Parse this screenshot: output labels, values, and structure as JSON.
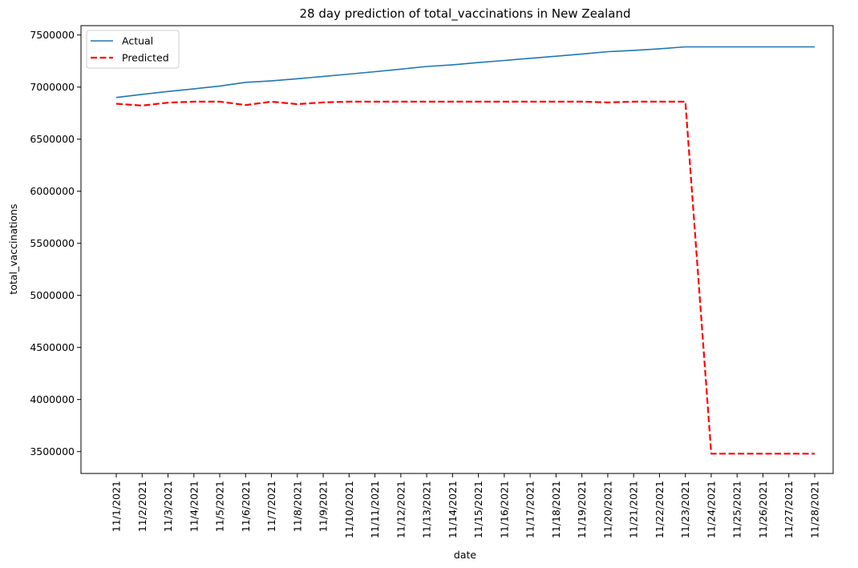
{
  "chart_data": {
    "type": "line",
    "title": "28 day prediction of total_vaccinations in New Zealand",
    "xlabel": "date",
    "ylabel": "total_vaccinations",
    "categories": [
      "11/1/2021",
      "11/2/2021",
      "11/3/2021",
      "11/4/2021",
      "11/5/2021",
      "11/6/2021",
      "11/7/2021",
      "11/8/2021",
      "11/9/2021",
      "11/10/2021",
      "11/11/2021",
      "11/12/2021",
      "11/13/2021",
      "11/14/2021",
      "11/15/2021",
      "11/16/2021",
      "11/17/2021",
      "11/18/2021",
      "11/19/2021",
      "11/20/2021",
      "11/21/2021",
      "11/22/2021",
      "11/23/2021",
      "11/24/2021",
      "11/25/2021",
      "11/26/2021",
      "11/27/2021",
      "11/28/2021"
    ],
    "yticks": [
      3500000,
      4000000,
      4500000,
      5000000,
      5500000,
      6000000,
      6500000,
      7000000,
      7500000
    ],
    "ylim": [
      3290000,
      7590000
    ],
    "legend": "top-left",
    "grid": false,
    "series": [
      {
        "name": "Actual",
        "color": "#1f77b4",
        "style": "solid",
        "values": [
          6900000,
          6930000,
          6958000,
          6983000,
          7010000,
          7045000,
          7060000,
          7080000,
          7102000,
          7125000,
          7148000,
          7172000,
          7198000,
          7214000,
          7235000,
          7255000,
          7276000,
          7296000,
          7318000,
          7340000,
          7352000,
          7368000,
          7386000,
          7386000,
          7386000,
          7386000,
          7386000,
          7386000
        ]
      },
      {
        "name": "Predicted",
        "color": "#ff0000",
        "style": "dashed",
        "values": [
          6840000,
          6822000,
          6851000,
          6860000,
          6860000,
          6828000,
          6860000,
          6836000,
          6853000,
          6860000,
          6860000,
          6860000,
          6860000,
          6860000,
          6860000,
          6860000,
          6860000,
          6860000,
          6860000,
          6853000,
          6860000,
          6860000,
          6860000,
          3480000,
          3480000,
          3480000,
          3480000,
          3480000
        ]
      }
    ]
  }
}
